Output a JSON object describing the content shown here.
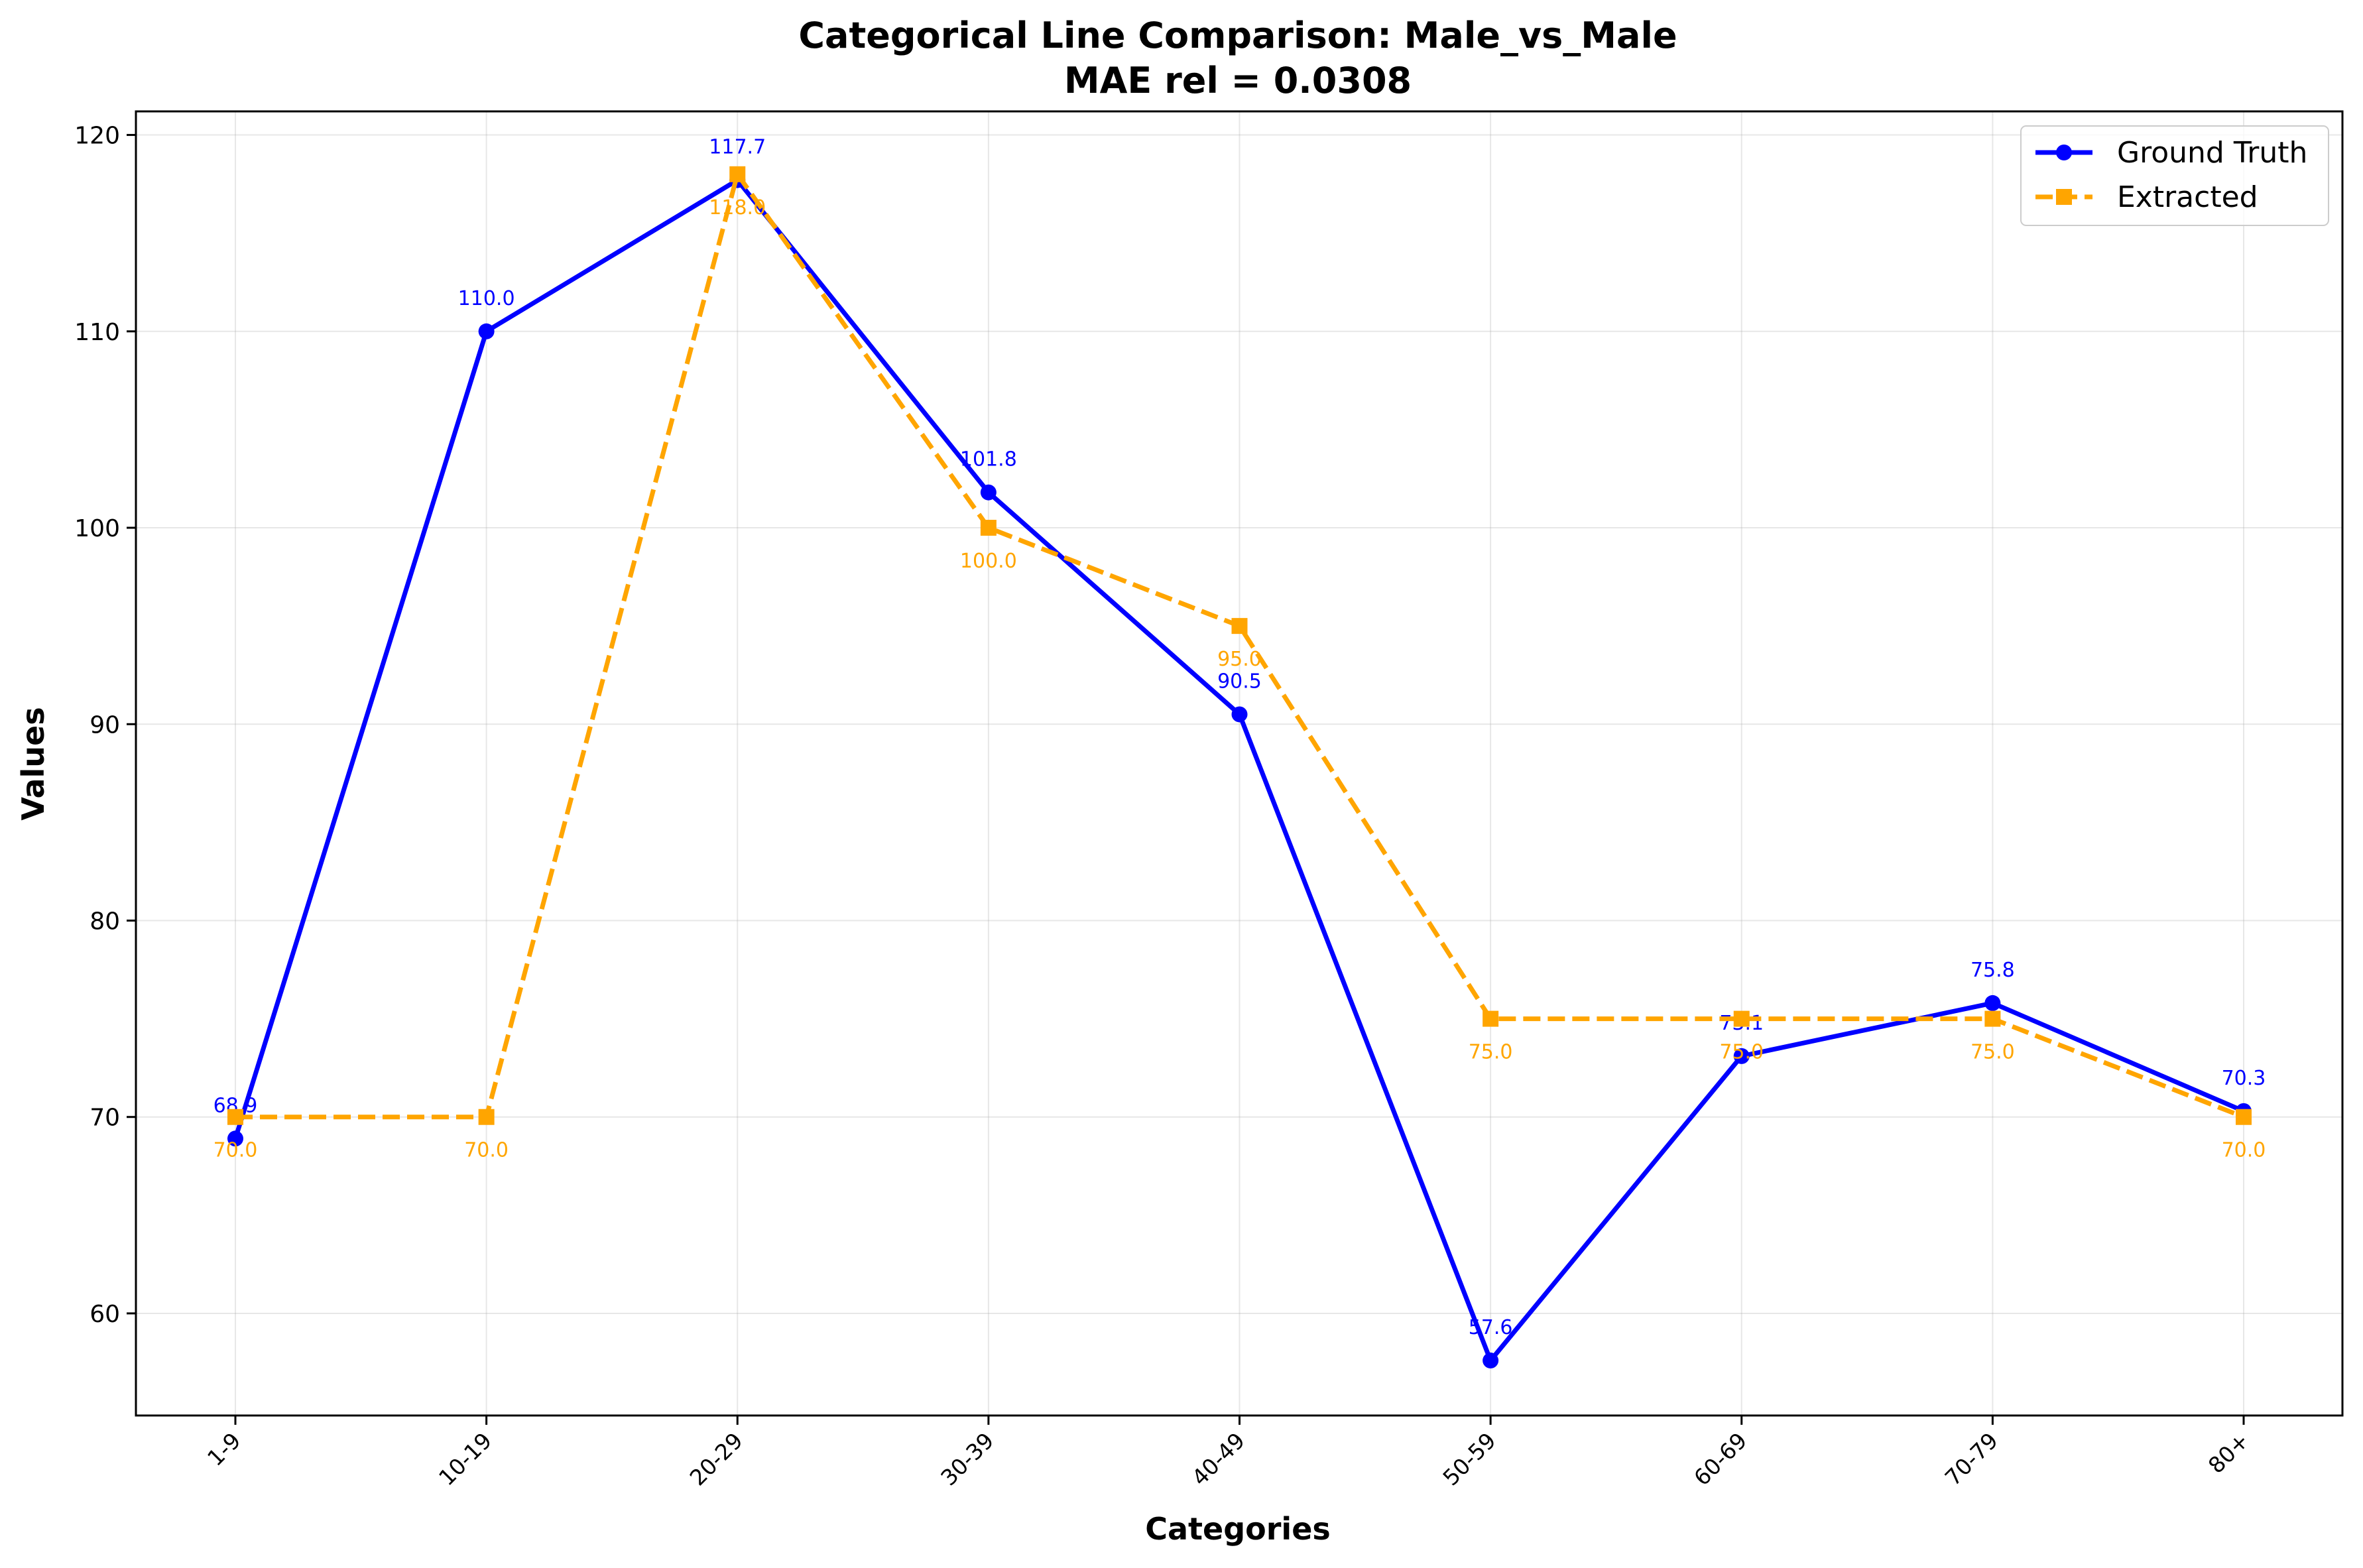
{
  "chart_data": {
    "type": "line",
    "title": "Categorical Line Comparison: Male_vs_Male",
    "subtitle": "MAE rel = 0.0308",
    "xlabel": "Categories",
    "ylabel": "Values",
    "categories": [
      "1-9",
      "10-19",
      "20-29",
      "30-39",
      "40-49",
      "50-59",
      "60-69",
      "70-79",
      "80+"
    ],
    "ylim": [
      54.8,
      121.2
    ],
    "yticks": [
      60,
      70,
      80,
      90,
      100,
      110,
      120
    ],
    "grid": true,
    "legend_position": "top-right",
    "series": [
      {
        "name": "Ground Truth",
        "color": "#0000ff",
        "line_style": "solid",
        "marker": "circle",
        "values": [
          68.9,
          110.0,
          117.7,
          101.8,
          90.5,
          57.6,
          73.1,
          75.8,
          70.3
        ],
        "labels": [
          "68.9",
          "110.0",
          "117.7",
          "101.8",
          "90.5",
          "57.6",
          "73.1",
          "75.8",
          "70.3"
        ]
      },
      {
        "name": "Extracted",
        "color": "#ffa500",
        "line_style": "dashed",
        "marker": "square",
        "values": [
          70.0,
          70.0,
          118.0,
          100.0,
          95.0,
          75.0,
          75.0,
          75.0,
          70.0
        ],
        "labels": [
          "70.0",
          "70.0",
          "118.0",
          "100.0",
          "95.0",
          "75.0",
          "75.0",
          "75.0",
          "70.0"
        ]
      }
    ]
  }
}
